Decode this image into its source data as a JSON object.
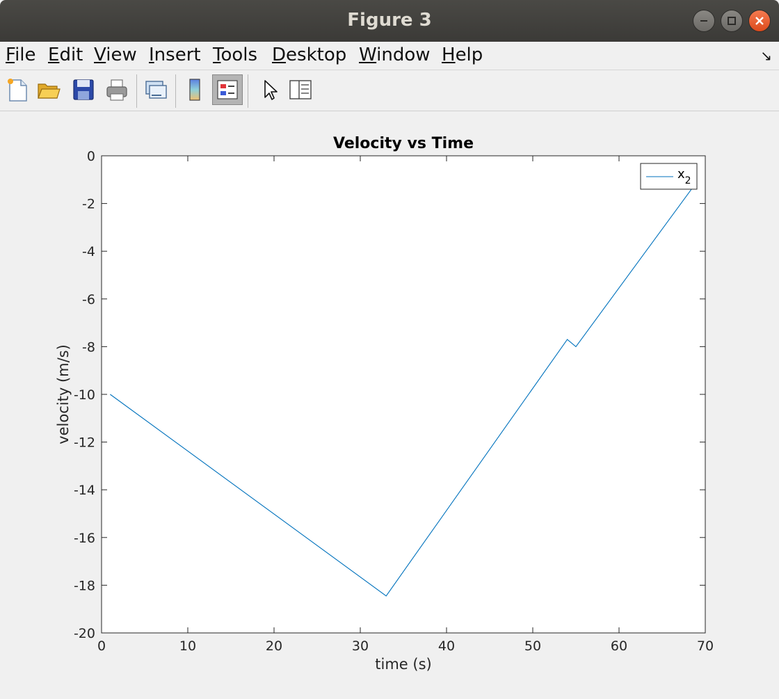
{
  "window": {
    "title": "Figure 3",
    "buttons": [
      "minimize-icon",
      "maximize-icon",
      "close-icon"
    ],
    "close_color": "#e95420"
  },
  "menu": {
    "items": [
      {
        "label": "File",
        "u": "F",
        "rest": "ile"
      },
      {
        "label": "Edit",
        "u": "E",
        "rest": "dit"
      },
      {
        "label": "View",
        "u": "V",
        "rest": "iew"
      },
      {
        "label": "Insert",
        "u": "I",
        "rest": "nsert"
      },
      {
        "label": "Tools",
        "u": "T",
        "rest": "ools"
      },
      {
        "label": "Desktop",
        "u": "D",
        "rest": "esktop"
      },
      {
        "label": "Window",
        "u": "W",
        "rest": "indow"
      },
      {
        "label": "Help",
        "u": "H",
        "rest": "elp"
      }
    ],
    "dock_icon": "dock-arrow-icon"
  },
  "toolbar": {
    "tools": [
      "new-figure-icon",
      "open-file-icon",
      "save-icon",
      "print-icon",
      "link-plot-icon",
      "colorbar-icon",
      "legend-icon",
      "pointer-icon",
      "property-inspector-icon"
    ],
    "pressed": "legend-icon"
  },
  "chart_data": {
    "type": "line",
    "title": "Velocity vs Time",
    "xlabel": "time (s)",
    "ylabel": "velocity (m/s)",
    "xlim": [
      0,
      70
    ],
    "ylim": [
      -20,
      0
    ],
    "xticks": [
      0,
      10,
      20,
      30,
      40,
      50,
      60,
      70
    ],
    "yticks": [
      0,
      -2,
      -4,
      -6,
      -8,
      -10,
      -12,
      -14,
      -16,
      -18,
      -20
    ],
    "grid": false,
    "legend": {
      "placement": "top-right",
      "entry": "x",
      "subscript": "2"
    },
    "series": [
      {
        "color": "#0072bd",
        "x": [
          1,
          33,
          54,
          55,
          68.5
        ],
        "y": [
          -10,
          -18.45,
          -7.7,
          -8.0,
          -1.35
        ]
      }
    ]
  }
}
